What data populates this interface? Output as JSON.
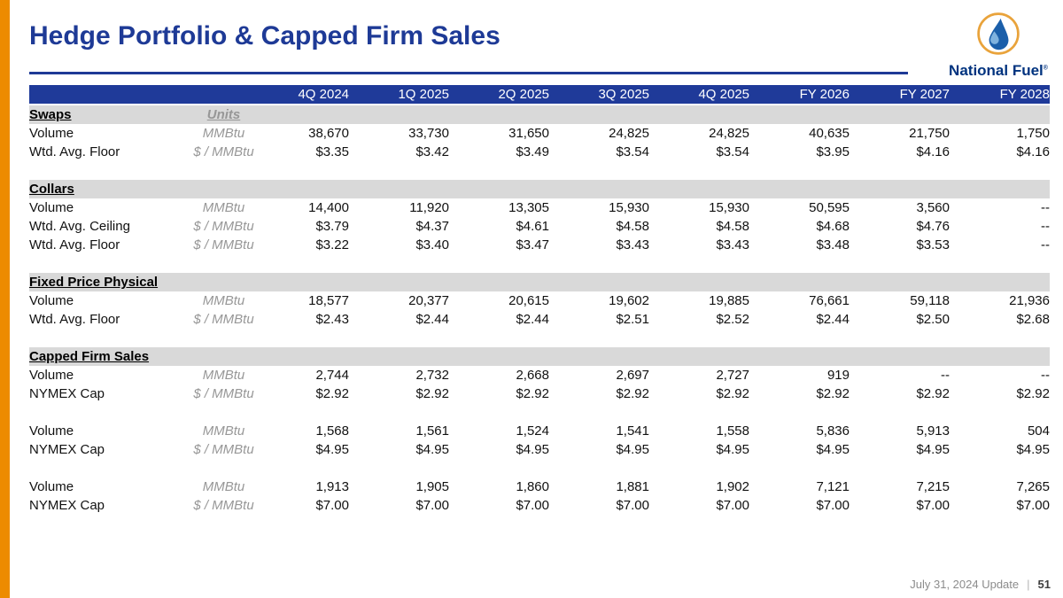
{
  "slide": {
    "title": "Hedge Portfolio & Capped Firm Sales",
    "footer": {
      "date_text": "July 31, 2024 Update",
      "separator": "|",
      "page_number": "51"
    }
  },
  "logo": {
    "name": "National Fuel",
    "registered_mark": "®",
    "icon": "flame-droplet-in-gold-circle-icon"
  },
  "colors": {
    "title_blue": "#1e3a96",
    "header_blue": "#1f3a99",
    "brand_orange": "#ED8B00",
    "section_band_gray": "#D9D9D9",
    "units_gray": "#979797",
    "footer_gray": "#8c8c8c"
  },
  "table": {
    "units_header": "Units",
    "columns": [
      "4Q 2024",
      "1Q 2025",
      "2Q 2025",
      "3Q 2025",
      "4Q 2025",
      "FY 2026",
      "FY 2027",
      "FY 2028"
    ],
    "sections": [
      {
        "name": "Swaps",
        "show_units_header": true,
        "rows": [
          {
            "label": "Volume",
            "units": "MMBtu",
            "values": [
              "38,670",
              "33,730",
              "31,650",
              "24,825",
              "24,825",
              "40,635",
              "21,750",
              "1,750"
            ]
          },
          {
            "label": "Wtd. Avg. Floor",
            "units": "$ / MMBtu",
            "values": [
              "$3.35",
              "$3.42",
              "$3.49",
              "$3.54",
              "$3.54",
              "$3.95",
              "$4.16",
              "$4.16"
            ]
          }
        ]
      },
      {
        "name": "Collars",
        "show_units_header": false,
        "rows": [
          {
            "label": "Volume",
            "units": "MMBtu",
            "values": [
              "14,400",
              "11,920",
              "13,305",
              "15,930",
              "15,930",
              "50,595",
              "3,560",
              "--"
            ]
          },
          {
            "label": "Wtd. Avg. Ceiling",
            "units": "$ / MMBtu",
            "values": [
              "$3.79",
              "$4.37",
              "$4.61",
              "$4.58",
              "$4.58",
              "$4.68",
              "$4.76",
              "--"
            ]
          },
          {
            "label": "Wtd. Avg. Floor",
            "units": "$ / MMBtu",
            "values": [
              "$3.22",
              "$3.40",
              "$3.47",
              "$3.43",
              "$3.43",
              "$3.48",
              "$3.53",
              "--"
            ]
          }
        ]
      },
      {
        "name": "Fixed Price Physical",
        "show_units_header": false,
        "rows": [
          {
            "label": "Volume",
            "units": "MMBtu",
            "values": [
              "18,577",
              "20,377",
              "20,615",
              "19,602",
              "19,885",
              "76,661",
              "59,118",
              "21,936"
            ]
          },
          {
            "label": "Wtd. Avg. Floor",
            "units": "$ / MMBtu",
            "values": [
              "$2.43",
              "$2.44",
              "$2.44",
              "$2.51",
              "$2.52",
              "$2.44",
              "$2.50",
              "$2.68"
            ]
          }
        ]
      },
      {
        "name": "Capped Firm Sales",
        "show_units_header": false,
        "rows": [
          {
            "label": "Volume",
            "units": "MMBtu",
            "values": [
              "2,744",
              "2,732",
              "2,668",
              "2,697",
              "2,727",
              "919",
              "--",
              "--"
            ]
          },
          {
            "label": "NYMEX Cap",
            "units": "$ / MMBtu",
            "values": [
              "$2.92",
              "$2.92",
              "$2.92",
              "$2.92",
              "$2.92",
              "$2.92",
              "$2.92",
              "$2.92"
            ]
          },
          {
            "spacer": true
          },
          {
            "label": "Volume",
            "units": "MMBtu",
            "values": [
              "1,568",
              "1,561",
              "1,524",
              "1,541",
              "1,558",
              "5,836",
              "5,913",
              "504"
            ]
          },
          {
            "label": "NYMEX Cap",
            "units": "$ / MMBtu",
            "values": [
              "$4.95",
              "$4.95",
              "$4.95",
              "$4.95",
              "$4.95",
              "$4.95",
              "$4.95",
              "$4.95"
            ]
          },
          {
            "spacer": true
          },
          {
            "label": "Volume",
            "units": "MMBtu",
            "values": [
              "1,913",
              "1,905",
              "1,860",
              "1,881",
              "1,902",
              "7,121",
              "7,215",
              "7,265"
            ]
          },
          {
            "label": "NYMEX Cap",
            "units": "$ / MMBtu",
            "values": [
              "$7.00",
              "$7.00",
              "$7.00",
              "$7.00",
              "$7.00",
              "$7.00",
              "$7.00",
              "$7.00"
            ]
          }
        ]
      }
    ]
  }
}
